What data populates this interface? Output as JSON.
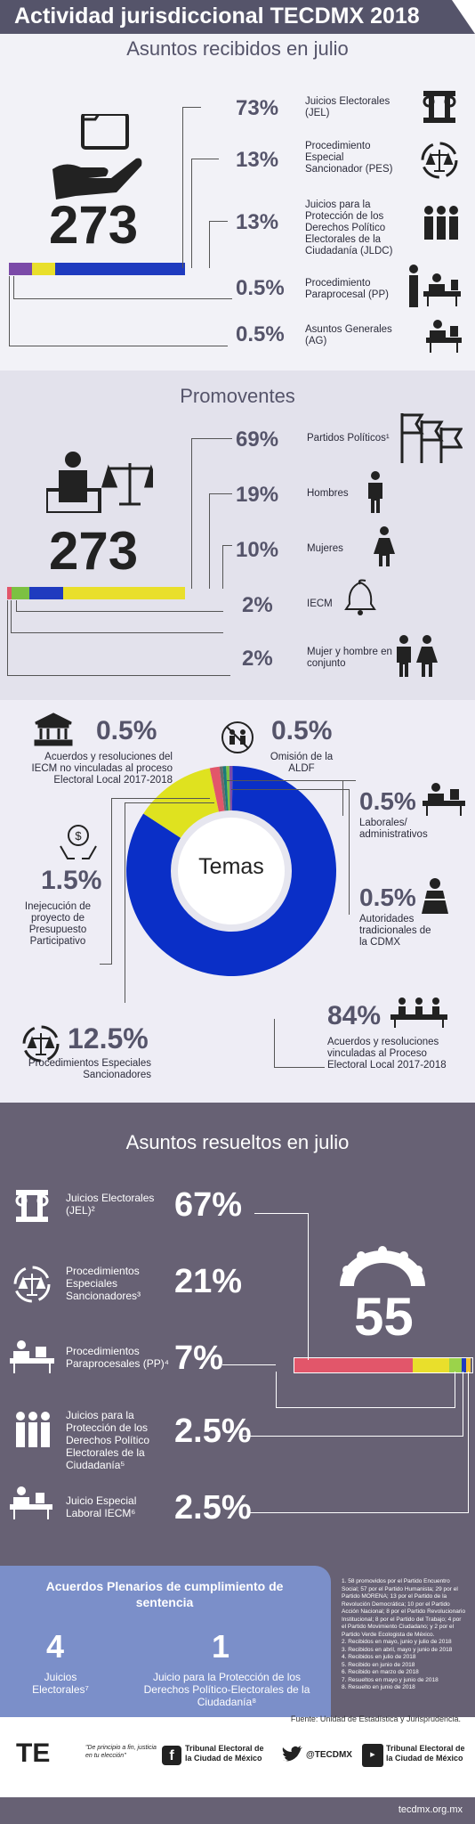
{
  "header": {
    "title": "Actividad jurisdiccional TECDMX 2018"
  },
  "recibidos": {
    "title": "Asuntos recibidos en julio",
    "total": "273",
    "items": [
      {
        "pct": "73%",
        "label": "Juicios Electorales (JEL)",
        "value": 73,
        "color": "#1f3bbf"
      },
      {
        "pct": "13%",
        "label": "Procedimiento Especial Sancionador (PES)",
        "value": 13,
        "color": "#e9df2b"
      },
      {
        "pct": "13%",
        "label": "Juicios para la Protección de los Derechos Político Electorales de la Ciudadanía (JLDC)",
        "value": 13,
        "color": "#7b4aa8"
      },
      {
        "pct": "0.5%",
        "label": "Procedimiento Paraprocesal (PP)",
        "value": 0.5,
        "color": "#9aa"
      },
      {
        "pct": "0.5%",
        "label": "Asuntos Generales (AG)",
        "value": 0.5,
        "color": "#999"
      }
    ]
  },
  "promoventes": {
    "title": "Promoventes",
    "total": "273",
    "items": [
      {
        "pct": "69%",
        "label": "Partidos Políticos¹",
        "value": 69,
        "color": "#e9df2b"
      },
      {
        "pct": "19%",
        "label": "Hombres",
        "value": 19,
        "color": "#1f3bbf"
      },
      {
        "pct": "10%",
        "label": "Mujeres",
        "value": 10,
        "color": "#7cc142"
      },
      {
        "pct": "2%",
        "label": "IECM",
        "value": 2,
        "color": "#e2566a"
      },
      {
        "pct": "2%",
        "label": "Mujer y hombre en conjunto",
        "value": 2,
        "color": "#7b4aa8"
      }
    ]
  },
  "temas": {
    "center": "Temas",
    "items": [
      {
        "pct": "0.5%",
        "label": "Acuerdos y resoluciones del IECM no vinculadas al proceso Electoral Local 2017-2018",
        "value": 0.5,
        "color": "#6b6b6b"
      },
      {
        "pct": "0.5%",
        "label": "Omisión de la ALDF",
        "value": 0.5,
        "color": "#1a7a7a"
      },
      {
        "pct": "0.5%",
        "label": "Laborales/ administrativos",
        "value": 0.5,
        "color": "#7cc142"
      },
      {
        "pct": "0.5%",
        "label": "Autoridades tradicionales de la CDMX",
        "value": 0.5,
        "color": "#7b4aa8"
      },
      {
        "pct": "84%",
        "label": "Acuerdos y resoluciones vinculadas al Proceso Electoral Local 2017-2018",
        "value": 84,
        "color": "#0a2fc7"
      },
      {
        "pct": "12.5%",
        "label": "Procedimientos Especiales Sancionadores",
        "value": 12.5,
        "color": "#dfe21f"
      },
      {
        "pct": "1.5%",
        "label": "Inejecución de proyecto de Presupuesto Participativo",
        "value": 1.5,
        "color": "#e2566a"
      }
    ]
  },
  "resueltos": {
    "title": "Asuntos resueltos en julio",
    "total": "55",
    "items": [
      {
        "pct": "67%",
        "label": "Juicios Electorales (JEL)²",
        "value": 67,
        "color": "#e2566a"
      },
      {
        "pct": "21%",
        "label": "Procedimientos Especiales Sancionadores³",
        "value": 21,
        "color": "#e9df2b"
      },
      {
        "pct": "7%",
        "label": "Procedimientos Paraprocesales (PP)⁴",
        "value": 7,
        "color": "#9bd34a"
      },
      {
        "pct": "2.5%",
        "label": "Juicios para la Protección de los Derechos Político Electorales de la Ciudadanía⁵",
        "value": 2.5,
        "color": "#1f3bbf"
      },
      {
        "pct": "2.5%",
        "label": "Juicio Especial Laboral IECM⁶",
        "value": 2.5,
        "color": "#f2c230"
      }
    ]
  },
  "plenarios": {
    "title": "Acuerdos Plenarios de cumplimiento de sentencia",
    "items": [
      {
        "num": "4",
        "label": "Juicios Electorales⁷"
      },
      {
        "num": "1",
        "label": "Juicio para la Protección de los Derechos Político-Electorales de la Ciudadanía⁸"
      }
    ]
  },
  "notes": [
    "1.  58 promovidos por el Partido Encuentro Social; 57 por el Partido Humanista; 29 por el Partido MORENA; 13 por el Partido de la Revolución Democrática; 10 por el Partido Acción Nacional; 8 por el Partido Revolucionario Institucional; 8 por el Partido del Trabajo; 4 por el Partido Movimiento Ciudadano; y 2 por el Partido Verde Ecologista de México.",
    "2.  Recibidos en mayo, junio y julio de 2018",
    "3.  Recibidos en abril, mayo y junio de 2018",
    "4.  Recibidos en julio de 2018",
    "5.  Recibido en junio de 2018",
    "6.  Recibido en marzo de 2018",
    "7.  Resueltos en mayo y junio de 2018",
    "8.  Resuelto en junio de 2018"
  ],
  "footer": {
    "source": "Fuente: Unidad de Estadística y Jurisprudencia.",
    "logo_text": "TE",
    "slogan": "\"De principio a fin, justicia en tu elección\"",
    "facebook": "Tribunal Electoral de la Ciudad de México",
    "twitter": "@TECDMX",
    "youtube": "Tribunal Electoral de la Ciudad de México",
    "url": "tecdmx.org.mx"
  }
}
